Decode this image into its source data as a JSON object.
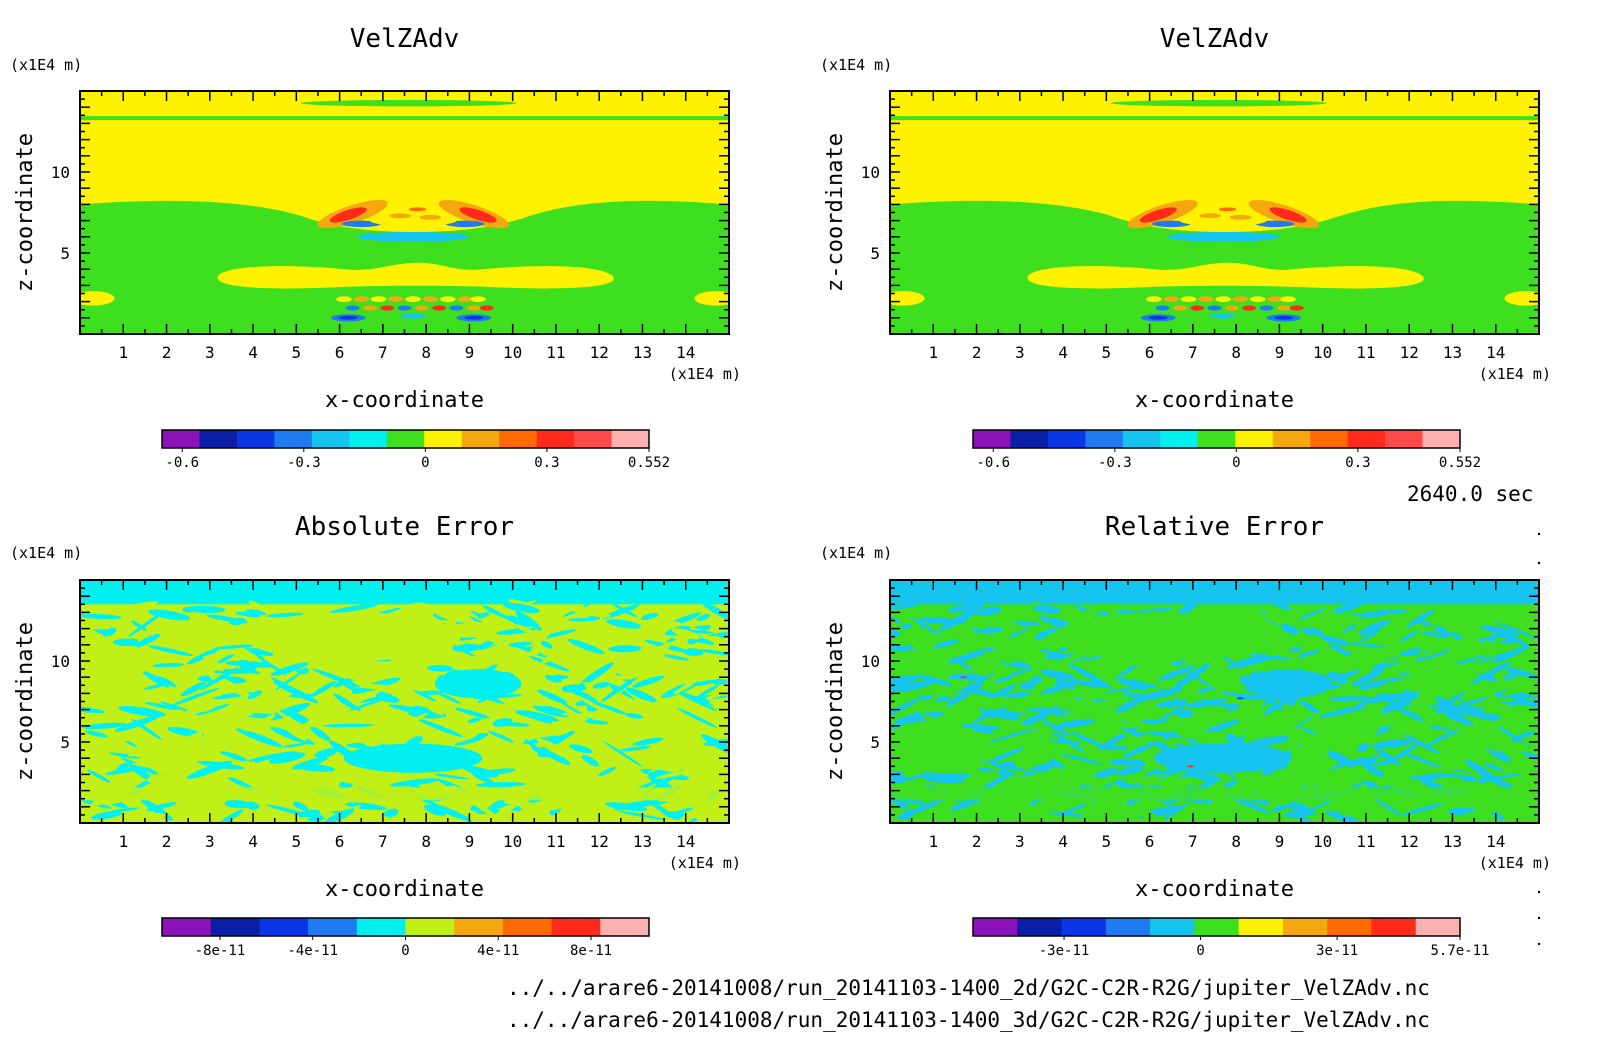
{
  "time_label": "2640.0 sec",
  "file_paths": [
    "../../arare6-20141008/run_20141103-1400_2d/G2C-C2R-R2G/jupiter_VelZAdv.nc",
    "../../arare6-20141008/run_20141103-1400_3d/G2C-C2R-R2G/jupiter_VelZAdv.nc"
  ],
  "chart_data": [
    {
      "type": "heatmap",
      "title": "VelZAdv",
      "xlabel": "x-coordinate",
      "ylabel": "z-coordinate",
      "x_unit": "(x1E4 m)",
      "y_unit": "(x1E4 m)",
      "xlim": [
        0,
        15
      ],
      "ylim": [
        0,
        15
      ],
      "x_ticks": [
        1,
        2,
        3,
        4,
        5,
        6,
        7,
        8,
        9,
        10,
        11,
        12,
        13,
        14
      ],
      "y_ticks": [
        5,
        10
      ],
      "colorbar": {
        "range": [
          -0.65,
          0.552
        ],
        "labels": [
          {
            "value": -0.6,
            "text": "-0.6"
          },
          {
            "value": -0.3,
            "text": "-0.3"
          },
          {
            "value": 0,
            "text": "0"
          },
          {
            "value": 0.3,
            "text": "0.3"
          },
          {
            "value": 0.552,
            "text": "0.552"
          }
        ],
        "colors": [
          "#8a12b8",
          "#0a1fa6",
          "#0a36e6",
          "#1e7cf0",
          "#16c4f0",
          "#00f0f0",
          "#3ddf1e",
          "#fff200",
          "#f5a70f",
          "#ff6a00",
          "#ff2a1a",
          "#ff4a4a",
          "#ffb0b0"
        ]
      },
      "background_color": "#3ddf1e",
      "features": "yellow near-zero upper layer above green lower layer; two symmetric red/blue convective rolls near z=7 around x=6.5 and x=8.8; yellow spreading cloud at z~3; alternating red/blue cells near surface at x~6-9"
    },
    {
      "type": "heatmap",
      "title": "VelZAdv",
      "xlabel": "x-coordinate",
      "ylabel": "z-coordinate",
      "x_unit": "(x1E4 m)",
      "y_unit": "(x1E4 m)",
      "xlim": [
        0,
        15
      ],
      "ylim": [
        0,
        15
      ],
      "x_ticks": [
        1,
        2,
        3,
        4,
        5,
        6,
        7,
        8,
        9,
        10,
        11,
        12,
        13,
        14
      ],
      "y_ticks": [
        5,
        10
      ],
      "colorbar": {
        "range": [
          -0.65,
          0.552
        ],
        "labels": [
          {
            "value": -0.6,
            "text": "-0.6"
          },
          {
            "value": -0.3,
            "text": "-0.3"
          },
          {
            "value": 0,
            "text": "0"
          },
          {
            "value": 0.3,
            "text": "0.3"
          },
          {
            "value": 0.552,
            "text": "0.552"
          }
        ],
        "colors": [
          "#8a12b8",
          "#0a1fa6",
          "#0a36e6",
          "#1e7cf0",
          "#16c4f0",
          "#00f0f0",
          "#3ddf1e",
          "#fff200",
          "#f5a70f",
          "#ff6a00",
          "#ff2a1a",
          "#ff4a4a",
          "#ffb0b0"
        ]
      },
      "background_color": "#3ddf1e",
      "features": "same as the first panel"
    },
    {
      "type": "heatmap",
      "title": "Absolute Error",
      "xlabel": "x-coordinate",
      "ylabel": "z-coordinate",
      "x_unit": "(x1E4 m)",
      "y_unit": "(x1E4 m)",
      "xlim": [
        0,
        15
      ],
      "ylim": [
        0,
        15
      ],
      "x_ticks": [
        1,
        2,
        3,
        4,
        5,
        6,
        7,
        8,
        9,
        10,
        11,
        12,
        13,
        14
      ],
      "y_ticks": [
        5,
        10
      ],
      "colorbar": {
        "range": [
          -1.05e-10,
          1.05e-10
        ],
        "labels": [
          {
            "value": -8e-11,
            "text": "-8e-11"
          },
          {
            "value": -4e-11,
            "text": "-4e-11"
          },
          {
            "value": 0,
            "text": "0"
          },
          {
            "value": 4e-11,
            "text": "4e-11"
          },
          {
            "value": 8e-11,
            "text": "8e-11"
          }
        ],
        "colors": [
          "#8a12b8",
          "#0a1fa6",
          "#0a36e6",
          "#1e7cf0",
          "#00f0f0",
          "#c0f016",
          "#f5a70f",
          "#ff6a00",
          "#ff2a1a",
          "#ffb0b0"
        ]
      },
      "background_color": "#c0f016",
      "features": "noisy patches of cyan (just below zero) and yellow-green (just above zero)"
    },
    {
      "type": "heatmap",
      "title": "Relative Error",
      "xlabel": "x-coordinate",
      "ylabel": "z-coordinate",
      "x_unit": "(x1E4 m)",
      "y_unit": "(x1E4 m)",
      "xlim": [
        0,
        15
      ],
      "ylim": [
        0,
        15
      ],
      "x_ticks": [
        1,
        2,
        3,
        4,
        5,
        6,
        7,
        8,
        9,
        10,
        11,
        12,
        13,
        14
      ],
      "y_ticks": [
        5,
        10
      ],
      "colorbar": {
        "range": [
          -5e-11,
          5.7e-11
        ],
        "labels": [
          {
            "value": -3e-11,
            "text": "-3e-11"
          },
          {
            "value": 0,
            "text": "0"
          },
          {
            "value": 3e-11,
            "text": "3e-11"
          },
          {
            "value": 5.7e-11,
            "text": "5.7e-11"
          }
        ],
        "colors": [
          "#8a12b8",
          "#0a1fa6",
          "#0a36e6",
          "#1e7cf0",
          "#16c4f0",
          "#3ddf1e",
          "#fff200",
          "#f5a70f",
          "#ff6a00",
          "#ff2a1a",
          "#ffb0b0"
        ]
      },
      "background_color": "#3ddf1e",
      "features": "noisy patches of light blue (just below zero) and green (just above zero)"
    }
  ]
}
